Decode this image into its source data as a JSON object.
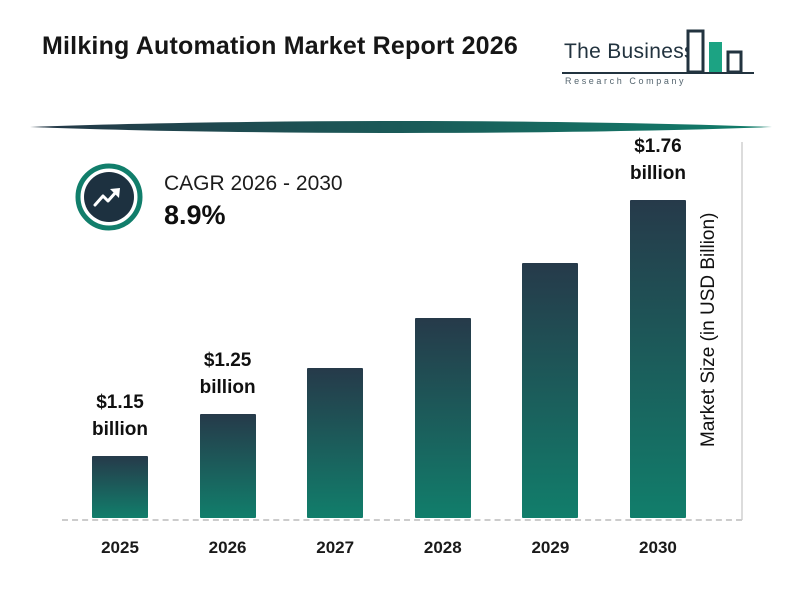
{
  "page": {
    "title": "Milking Automation Market Report 2026"
  },
  "logo": {
    "name_line": "The Business",
    "subtitle_line": "Research Company"
  },
  "cagr": {
    "label": "CAGR 2026 - 2030",
    "value": "8.9%"
  },
  "colors": {
    "teal": "#117E6B",
    "navy": "#223746",
    "bar_top": "#263A4A",
    "bar_bottom": "#117E6B",
    "logo_green": "#1CA383",
    "logo_dark": "#22333F"
  },
  "chart_data": {
    "type": "bar",
    "title": "Milking Automation Market Report 2026",
    "categories": [
      "2025",
      "2026",
      "2027",
      "2028",
      "2029",
      "2030"
    ],
    "values": [
      1.15,
      1.25,
      1.36,
      1.48,
      1.61,
      1.76
    ],
    "unit": "USD Billion",
    "ylabel": "Market Size (in USD Billion)",
    "xlabel": "",
    "bar_labels": [
      {
        "line1": "$1.15",
        "line2": "billion"
      },
      {
        "line1": "$1.25",
        "line2": "billion"
      },
      null,
      null,
      null,
      {
        "line1": "$1.76",
        "line2": "billion"
      }
    ],
    "grid": "none",
    "baseline_style": "dashed",
    "legend": "none"
  }
}
